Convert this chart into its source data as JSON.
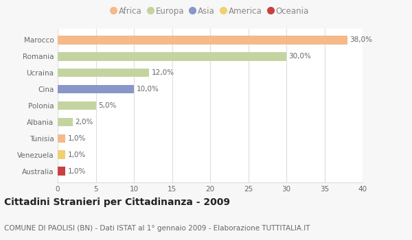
{
  "categories": [
    "Marocco",
    "Romania",
    "Ucraina",
    "Cina",
    "Polonia",
    "Albania",
    "Tunisia",
    "Venezuela",
    "Australia"
  ],
  "values": [
    38.0,
    30.0,
    12.0,
    10.0,
    5.0,
    2.0,
    1.0,
    1.0,
    1.0
  ],
  "labels": [
    "38,0%",
    "30,0%",
    "12,0%",
    "10,0%",
    "5,0%",
    "2,0%",
    "1,0%",
    "1,0%",
    "1,0%"
  ],
  "bar_colors": [
    "#F5B98A",
    "#C4D4A0",
    "#C4D4A0",
    "#8896C8",
    "#C4D4A0",
    "#C4D4A0",
    "#F5B98A",
    "#F0D070",
    "#C94040"
  ],
  "xlim": [
    0,
    40
  ],
  "xticks": [
    0,
    5,
    10,
    15,
    20,
    25,
    30,
    35,
    40
  ],
  "title": "Cittadini Stranieri per Cittadinanza - 2009",
  "subtitle": "COMUNE DI PAOLISI (BN) - Dati ISTAT al 1° gennaio 2009 - Elaborazione TUTTITALIA.IT",
  "legend_entries": [
    "Africa",
    "Europa",
    "Asia",
    "America",
    "Oceania"
  ],
  "legend_colors": [
    "#F5B98A",
    "#C4D4A0",
    "#8896C8",
    "#F0D070",
    "#C94040"
  ],
  "background_color": "#f7f7f7",
  "plot_bg_color": "#ffffff",
  "grid_color": "#dddddd",
  "bar_height": 0.52,
  "title_fontsize": 10,
  "subtitle_fontsize": 7.5,
  "label_fontsize": 7.5,
  "tick_fontsize": 7.5,
  "legend_fontsize": 8.5
}
